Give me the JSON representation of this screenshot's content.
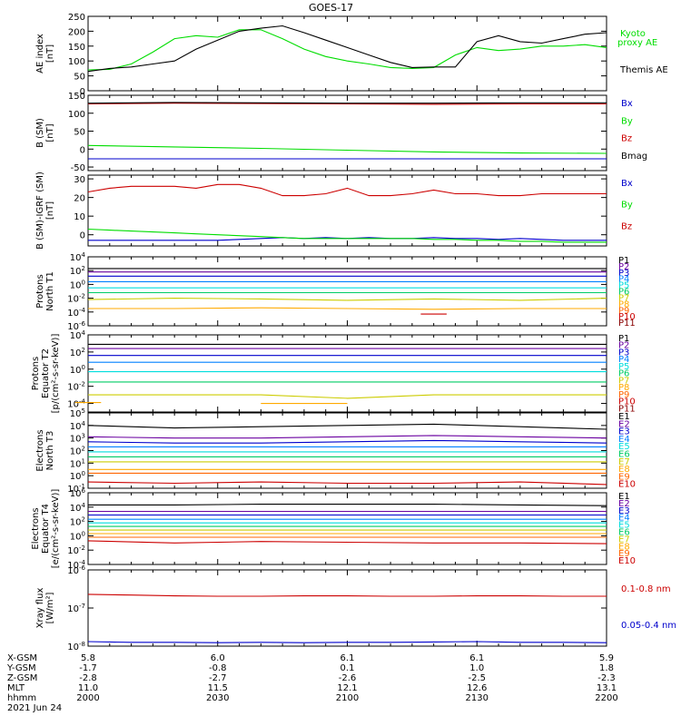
{
  "title": "GOES-17",
  "date_label": "2021 Jun 24",
  "x_axis": {
    "ticks": [
      "2000",
      "2030",
      "2100",
      "2130",
      "2200"
    ],
    "rows": [
      {
        "label": "X-GSM",
        "values": [
          "5.8",
          "6.0",
          "6.1",
          "6.1",
          "5.9"
        ]
      },
      {
        "label": "Y-GSM",
        "values": [
          "-1.7",
          "-0.8",
          "0.1",
          "1.0",
          "1.8"
        ]
      },
      {
        "label": "Z-GSM",
        "values": [
          "-2.8",
          "-2.7",
          "-2.6",
          "-2.5",
          "-2.3"
        ]
      },
      {
        "label": "MLT",
        "values": [
          "11.0",
          "11.5",
          "12.1",
          "12.6",
          "13.1"
        ]
      },
      {
        "label": "hhmm",
        "values": [
          "2000",
          "2030",
          "2100",
          "2130",
          "2200"
        ]
      }
    ]
  },
  "chart_data": [
    {
      "type": "line",
      "ylabel": [
        "AE index",
        "[nT]"
      ],
      "ylim": [
        0,
        250
      ],
      "yticks": [
        "0",
        "50",
        "100",
        "150",
        "200",
        "250"
      ],
      "x": [
        0,
        5,
        10,
        15,
        20,
        25,
        30,
        35,
        40,
        45,
        50,
        55,
        60,
        65,
        70,
        75,
        80,
        85,
        90,
        95,
        100,
        105,
        110,
        115,
        120
      ],
      "series": [
        {
          "name": "Kyoto proxy AE",
          "color": "#00dd00",
          "legend": [
            "Kyoto",
            "proxy AE"
          ],
          "values": [
            70,
            72,
            90,
            130,
            175,
            185,
            180,
            205,
            205,
            175,
            140,
            115,
            100,
            90,
            78,
            75,
            78,
            120,
            145,
            135,
            140,
            150,
            150,
            155,
            145
          ]
        },
        {
          "name": "Themis AE",
          "color": "#000000",
          "legend": [
            "Themis AE"
          ],
          "values": [
            65,
            75,
            80,
            90,
            100,
            140,
            170,
            200,
            210,
            218,
            195,
            170,
            145,
            120,
            95,
            78,
            80,
            80,
            165,
            185,
            165,
            160,
            175,
            190,
            195
          ]
        }
      ]
    },
    {
      "type": "line",
      "ylabel": [
        "B (SM)",
        "[nT]"
      ],
      "ylim": [
        -60,
        150
      ],
      "yticks": [
        "-50",
        "0",
        "50",
        "100",
        "150"
      ],
      "x": [
        0,
        20,
        40,
        60,
        80,
        100,
        120
      ],
      "series": [
        {
          "name": "Bx",
          "color": "#0000cc",
          "values": [
            -27,
            -27,
            -27,
            -27,
            -27,
            -27,
            -27
          ]
        },
        {
          "name": "By",
          "color": "#00dd00",
          "values": [
            10,
            6,
            2,
            -3,
            -8,
            -11,
            -12
          ]
        },
        {
          "name": "Bz",
          "color": "#cc0000",
          "values": [
            126,
            128,
            127,
            126,
            125,
            126,
            126
          ]
        },
        {
          "name": "Bmag",
          "color": "#000000",
          "values": [
            128,
            130,
            129,
            128,
            128,
            129,
            129
          ]
        }
      ]
    },
    {
      "type": "line",
      "ylabel": [
        "B (SM)-IGRF (SM)",
        "[nT]"
      ],
      "ylim": [
        -6,
        32
      ],
      "yticks": [
        "0",
        "10",
        "20",
        "30"
      ],
      "x": [
        0,
        5,
        10,
        15,
        20,
        25,
        30,
        35,
        40,
        45,
        50,
        55,
        60,
        65,
        70,
        75,
        80,
        85,
        90,
        95,
        100,
        105,
        110,
        115,
        120
      ],
      "series": [
        {
          "name": "Bx",
          "color": "#0000cc",
          "values": [
            -3,
            -3,
            -3,
            -3,
            -3,
            -3,
            -3,
            -2.5,
            -2,
            -1.5,
            -2,
            -1.5,
            -2,
            -1.5,
            -2,
            -2,
            -1.5,
            -2,
            -2,
            -2.5,
            -2,
            -2.5,
            -3,
            -3,
            -3
          ]
        },
        {
          "name": "By",
          "color": "#00dd00",
          "values": [
            3,
            2.5,
            2,
            1.5,
            1,
            0.5,
            0,
            -0.5,
            -1,
            -1.5,
            -2,
            -2,
            -2,
            -2,
            -2,
            -2,
            -2.5,
            -2.5,
            -3,
            -3,
            -3.5,
            -3.5,
            -4,
            -4,
            -4
          ]
        },
        {
          "name": "Bz",
          "color": "#cc0000",
          "values": [
            23,
            25,
            26,
            26,
            26,
            25,
            27,
            27,
            25,
            21,
            21,
            22,
            25,
            21,
            21,
            22,
            24,
            22,
            22,
            21,
            21,
            22,
            22,
            22,
            22
          ]
        }
      ]
    },
    {
      "type": "line",
      "ylabel": [
        "Protons",
        "North T1"
      ],
      "log": true,
      "ylim": [
        -6,
        4
      ],
      "yticks": [
        "10^-6",
        "10^-4",
        "10^-2",
        "10^0",
        "10^2",
        "10^4"
      ],
      "x": [
        0,
        20,
        40,
        60,
        80,
        100,
        120
      ],
      "series": [
        {
          "name": "P1",
          "color": "#000000",
          "values": [
            2.3,
            2.3,
            2.3,
            2.3,
            2.3,
            2.3,
            2.3
          ]
        },
        {
          "name": "P2",
          "color": "#6a00a0",
          "values": [
            1.8,
            1.8,
            1.8,
            1.8,
            1.8,
            1.8,
            1.8
          ]
        },
        {
          "name": "P3",
          "color": "#0000cc",
          "values": [
            1.2,
            1.2,
            1.2,
            1.2,
            1.2,
            1.2,
            1.2
          ]
        },
        {
          "name": "P4",
          "color": "#0080ff",
          "values": [
            0.4,
            0.4,
            0.4,
            0.4,
            0.4,
            0.4,
            0.4
          ]
        },
        {
          "name": "P5",
          "color": "#00dddd",
          "values": [
            -0.5,
            -0.5,
            -0.5,
            -0.5,
            -0.5,
            -0.5,
            -0.5
          ]
        },
        {
          "name": "P6",
          "color": "#00cc66",
          "values": [
            -1.2,
            -1.2,
            -1.2,
            -1.2,
            -1.2,
            -1.2,
            -1.2
          ]
        },
        {
          "name": "P7",
          "color": "#cccc00",
          "values": [
            -2.2,
            -2.0,
            -2.1,
            -2.3,
            -2.1,
            -2.3,
            -2.0
          ]
        },
        {
          "name": "P8",
          "color": "#ffaa00",
          "values": [
            -3.5,
            -3.5,
            -3.4,
            -3.5,
            -3.6,
            -3.5,
            -3.5
          ]
        },
        {
          "name": "P9",
          "color": "#ff6600",
          "values": [
            null,
            null,
            null,
            null,
            null,
            null,
            null
          ]
        },
        {
          "name": "P10",
          "color": "#cc0000",
          "values": [
            null,
            null,
            null,
            null,
            -4.3,
            null,
            null
          ]
        },
        {
          "name": "P11",
          "color": "#880000",
          "values": [
            null,
            null,
            null,
            null,
            null,
            null,
            null
          ]
        }
      ]
    },
    {
      "type": "line",
      "ylabel": [
        "Protons",
        "Equator T2",
        "[p/(cm²-s-sr-keV)]"
      ],
      "log": true,
      "ylim": [
        -5,
        4
      ],
      "yticks": [
        "10^-4",
        "10^-2",
        "10^0",
        "10^2",
        "10^4"
      ],
      "x": [
        0,
        20,
        40,
        60,
        80,
        100,
        120
      ],
      "series": [
        {
          "name": "P1",
          "color": "#000000",
          "values": [
            2.9,
            2.9,
            2.9,
            2.9,
            2.9,
            2.9,
            2.9
          ]
        },
        {
          "name": "P2",
          "color": "#6a00a0",
          "values": [
            2.4,
            2.4,
            2.4,
            2.4,
            2.4,
            2.4,
            2.4
          ]
        },
        {
          "name": "P3",
          "color": "#0000cc",
          "values": [
            1.6,
            1.6,
            1.6,
            1.6,
            1.6,
            1.6,
            1.6
          ]
        },
        {
          "name": "P4",
          "color": "#0080ff",
          "values": [
            0.8,
            0.8,
            0.8,
            0.8,
            0.8,
            0.8,
            0.8
          ]
        },
        {
          "name": "P5",
          "color": "#00dddd",
          "values": [
            -0.3,
            -0.3,
            -0.3,
            -0.3,
            -0.3,
            -0.3,
            -0.3
          ]
        },
        {
          "name": "P6",
          "color": "#00cc66",
          "values": [
            -1.5,
            -1.5,
            -1.5,
            -1.5,
            -1.5,
            -1.5,
            -1.5
          ]
        },
        {
          "name": "P7",
          "color": "#cccc00",
          "values": [
            -3.0,
            -3.0,
            -3.0,
            -3.4,
            -3.0,
            -3.0,
            -3.0
          ]
        },
        {
          "name": "P8",
          "color": "#ffaa00",
          "values": [
            -3.9,
            null,
            -4.0,
            -4.0,
            null,
            null,
            null
          ]
        },
        {
          "name": "P9",
          "color": "#ff6600",
          "values": [
            null,
            null,
            null,
            null,
            null,
            null,
            null
          ]
        },
        {
          "name": "P10",
          "color": "#cc0000",
          "values": [
            null,
            null,
            null,
            null,
            null,
            null,
            null
          ]
        },
        {
          "name": "P11",
          "color": "#880000",
          "values": [
            null,
            null,
            null,
            null,
            null,
            null,
            null
          ]
        }
      ]
    },
    {
      "type": "line",
      "ylabel": [
        "Electrons",
        "North T3"
      ],
      "log": true,
      "ylim": [
        -1,
        5
      ],
      "yticks": [
        "10^-1",
        "10^0",
        "10^1",
        "10^2",
        "10^3",
        "10^4",
        "10^5"
      ],
      "x": [
        0,
        20,
        40,
        60,
        80,
        100,
        120
      ],
      "series": [
        {
          "name": "E1",
          "color": "#000000",
          "values": [
            4.0,
            3.8,
            3.9,
            4.0,
            4.1,
            3.9,
            3.7
          ]
        },
        {
          "name": "E2",
          "color": "#6a00a0",
          "values": [
            3.1,
            3.0,
            3.0,
            3.1,
            3.2,
            3.1,
            3.0
          ]
        },
        {
          "name": "E3",
          "color": "#0000cc",
          "values": [
            2.7,
            2.6,
            2.6,
            2.7,
            2.8,
            2.7,
            2.6
          ]
        },
        {
          "name": "E4",
          "color": "#0080ff",
          "values": [
            2.3,
            2.3,
            2.3,
            2.3,
            2.3,
            2.3,
            2.3
          ]
        },
        {
          "name": "E5",
          "color": "#00dddd",
          "values": [
            1.9,
            1.9,
            1.9,
            1.9,
            1.9,
            1.9,
            1.9
          ]
        },
        {
          "name": "E6",
          "color": "#00cc66",
          "values": [
            1.5,
            1.5,
            1.5,
            1.5,
            1.5,
            1.5,
            1.5
          ]
        },
        {
          "name": "E7",
          "color": "#cccc00",
          "values": [
            1.1,
            1.1,
            1.1,
            1.1,
            1.1,
            1.1,
            1.1
          ]
        },
        {
          "name": "E8",
          "color": "#ffaa00",
          "values": [
            0.5,
            0.5,
            0.5,
            0.5,
            0.5,
            0.5,
            0.5
          ]
        },
        {
          "name": "E9",
          "color": "#ff6600",
          "values": [
            0.2,
            0.2,
            0.2,
            0.2,
            0.2,
            0.2,
            0.2
          ]
        },
        {
          "name": "E10",
          "color": "#cc0000",
          "values": [
            -0.5,
            -0.6,
            -0.5,
            -0.6,
            -0.6,
            -0.5,
            -0.7
          ]
        }
      ]
    },
    {
      "type": "line",
      "ylabel": [
        "Electrons",
        "Equator T4",
        "[e/(cm²-s-sr-keV)]"
      ],
      "log": true,
      "ylim": [
        -4,
        6
      ],
      "yticks": [
        "10^-4",
        "10^-2",
        "10^0",
        "10^2",
        "10^4",
        "10^6"
      ],
      "x": [
        0,
        20,
        40,
        60,
        80,
        100,
        120
      ],
      "series": [
        {
          "name": "E1",
          "color": "#000000",
          "values": [
            4.3,
            4.3,
            4.4,
            4.4,
            4.4,
            4.3,
            4.2
          ]
        },
        {
          "name": "E2",
          "color": "#6a00a0",
          "values": [
            3.4,
            3.4,
            3.4,
            3.4,
            3.4,
            3.4,
            3.4
          ]
        },
        {
          "name": "E3",
          "color": "#0000cc",
          "values": [
            2.9,
            2.9,
            2.9,
            2.9,
            2.9,
            2.9,
            2.9
          ]
        },
        {
          "name": "E4",
          "color": "#0080ff",
          "values": [
            2.3,
            2.3,
            2.3,
            2.3,
            2.3,
            2.3,
            2.3
          ]
        },
        {
          "name": "E5",
          "color": "#00dddd",
          "values": [
            1.8,
            1.8,
            1.8,
            1.8,
            1.8,
            1.8,
            1.8
          ]
        },
        {
          "name": "E6",
          "color": "#00cc66",
          "values": [
            1.3,
            1.3,
            1.3,
            1.3,
            1.3,
            1.3,
            1.3
          ]
        },
        {
          "name": "E7",
          "color": "#cccc00",
          "values": [
            0.8,
            0.8,
            0.8,
            0.8,
            0.8,
            0.8,
            0.8
          ]
        },
        {
          "name": "E8",
          "color": "#ffaa00",
          "values": [
            0.3,
            0.3,
            0.3,
            0.3,
            0.3,
            0.3,
            0.3
          ]
        },
        {
          "name": "E9",
          "color": "#ff6600",
          "values": [
            -0.2,
            -0.2,
            -0.2,
            -0.2,
            -0.2,
            -0.2,
            -0.2
          ]
        },
        {
          "name": "E10",
          "color": "#cc0000",
          "values": [
            -0.7,
            -1.0,
            -0.8,
            -0.9,
            -1.0,
            -1.0,
            -1.1
          ]
        }
      ]
    },
    {
      "type": "line",
      "ylabel": [
        "Xray flux",
        "[W/m²]"
      ],
      "log": true,
      "ylim": [
        -8,
        -6
      ],
      "yticks": [
        "10^-8",
        "10^-7",
        "10^-6"
      ],
      "x": [
        0,
        10,
        20,
        30,
        40,
        50,
        60,
        70,
        80,
        90,
        100,
        110,
        120
      ],
      "series": [
        {
          "name": "0.1-0.8 nm",
          "color": "#cc0000",
          "values": [
            -6.64,
            -6.66,
            -6.68,
            -6.69,
            -6.69,
            -6.68,
            -6.68,
            -6.69,
            -6.69,
            -6.68,
            -6.68,
            -6.69,
            -6.69
          ]
        },
        {
          "name": "0.05-0.4 nm",
          "color": "#0000cc",
          "values": [
            -7.88,
            -7.9,
            -7.9,
            -7.91,
            -7.9,
            -7.91,
            -7.9,
            -7.9,
            -7.89,
            -7.88,
            -7.9,
            -7.9,
            -7.91
          ]
        }
      ]
    }
  ]
}
